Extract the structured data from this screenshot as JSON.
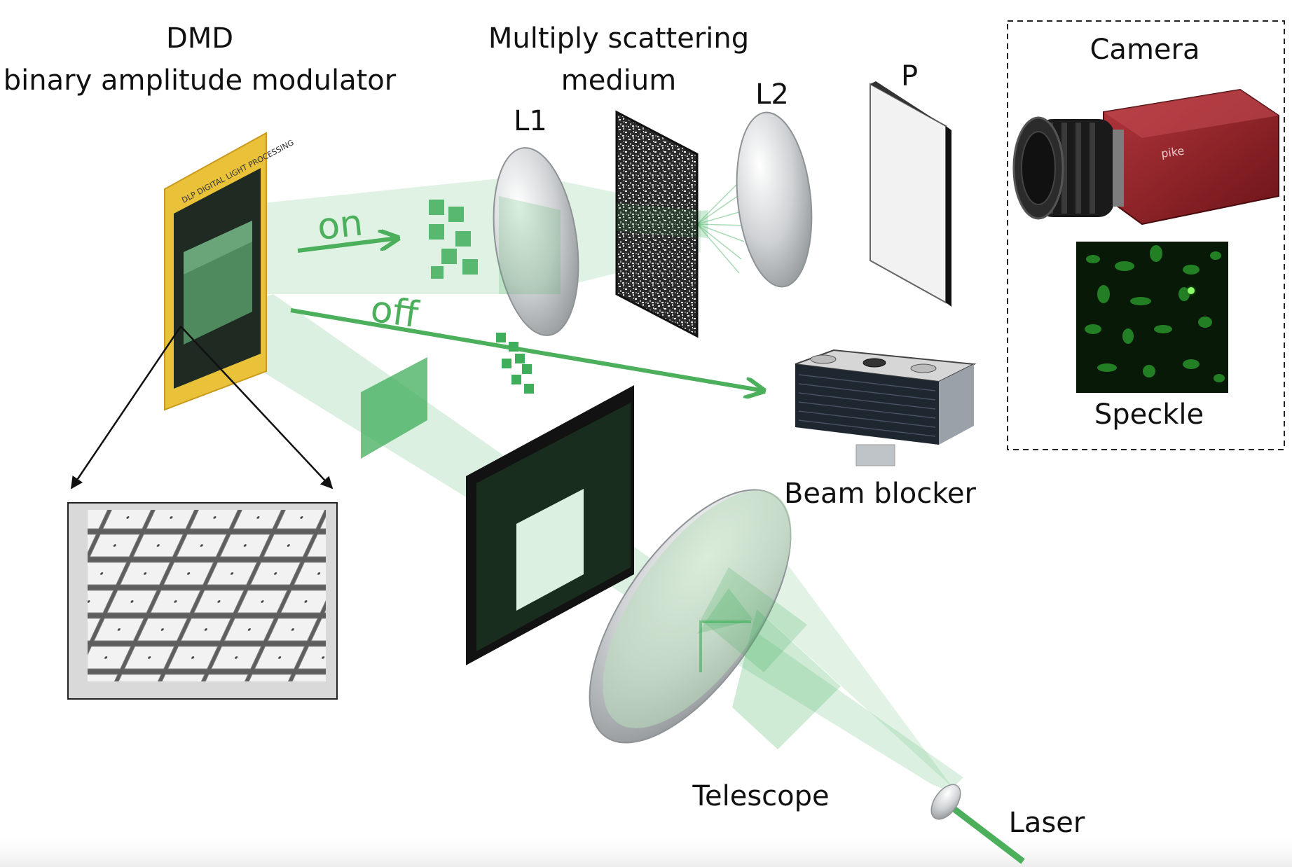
{
  "labels": {
    "dmd_line1": "DMD",
    "dmd_line2": "binary amplitude modulator",
    "medium_line1": "Multiply scattering",
    "medium_line2": "medium",
    "l1": "L1",
    "l2": "L2",
    "p": "P",
    "camera": "Camera",
    "speckle": "Speckle",
    "on": "on",
    "off": "off",
    "beam_blocker": "Beam blocker",
    "telescope": "Telescope",
    "laser": "Laser"
  },
  "camera_brand": "pike",
  "colors": {
    "beam": "#3fae5a",
    "beam_light": "#bfe5c6",
    "arrow": "#4caf5c",
    "camera_body": "#8c1d22",
    "dmd_frame": "#e9c23a",
    "ink": "#111111"
  },
  "icons": {
    "dmd_chip": "dmd-chip-illustration",
    "mirror_array": "micromirror-array-photo",
    "lens": "lens-illustration",
    "scattering_medium": "scattering-medium-illustration",
    "polarizer": "polarizer-plate-illustration",
    "camera": "camera-illustration",
    "speckle": "speckle-pattern-image",
    "beam_blocker": "beam-blocker-illustration",
    "laser": "laser-source-illustration"
  }
}
